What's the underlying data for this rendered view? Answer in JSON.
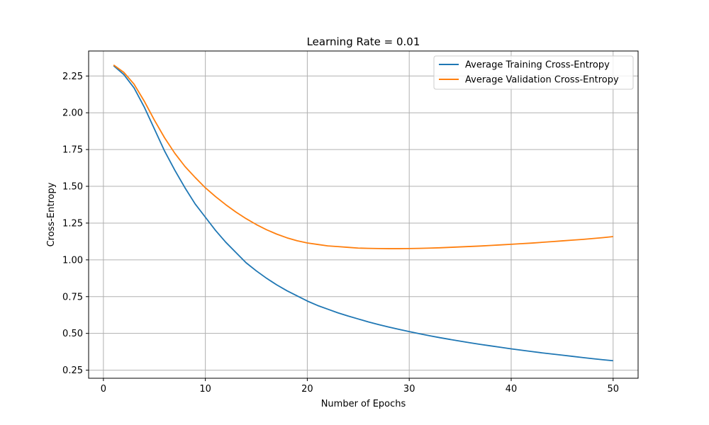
{
  "chart_data": {
    "type": "line",
    "title": "Learning Rate = 0.01",
    "xlabel": "Number of Epochs",
    "ylabel": "Cross-Entropy",
    "xlim": [
      -1.45,
      52.45
    ],
    "ylim": [
      0.195,
      2.42
    ],
    "xticks": [
      0,
      10,
      20,
      30,
      40,
      50
    ],
    "yticks": [
      0.25,
      0.5,
      0.75,
      1.0,
      1.25,
      1.5,
      1.75,
      2.0,
      2.25
    ],
    "grid": true,
    "legend_position": "top-right",
    "x": [
      1,
      2,
      3,
      4,
      5,
      6,
      7,
      8,
      9,
      10,
      11,
      12,
      13,
      14,
      15,
      16,
      17,
      18,
      19,
      20,
      21,
      22,
      23,
      24,
      25,
      26,
      27,
      28,
      29,
      30,
      31,
      32,
      33,
      34,
      35,
      36,
      37,
      38,
      39,
      40,
      41,
      42,
      43,
      44,
      45,
      46,
      47,
      48,
      49,
      50
    ],
    "series": [
      {
        "name": "Average Training Cross-Entropy",
        "color": "#1f77b4",
        "values": [
          2.32,
          2.26,
          2.17,
          2.04,
          1.89,
          1.74,
          1.61,
          1.49,
          1.38,
          1.29,
          1.2,
          1.12,
          1.05,
          0.98,
          0.925,
          0.875,
          0.83,
          0.79,
          0.755,
          0.72,
          0.69,
          0.665,
          0.64,
          0.618,
          0.598,
          0.578,
          0.56,
          0.543,
          0.527,
          0.512,
          0.498,
          0.484,
          0.471,
          0.459,
          0.447,
          0.436,
          0.425,
          0.415,
          0.405,
          0.395,
          0.386,
          0.377,
          0.368,
          0.36,
          0.352,
          0.344,
          0.336,
          0.328,
          0.321,
          0.314
        ]
      },
      {
        "name": "Average Validation Cross-Entropy",
        "color": "#ff7f0e",
        "values": [
          2.325,
          2.275,
          2.195,
          2.08,
          1.95,
          1.83,
          1.725,
          1.635,
          1.56,
          1.49,
          1.43,
          1.375,
          1.325,
          1.28,
          1.24,
          1.205,
          1.175,
          1.15,
          1.13,
          1.115,
          1.105,
          1.095,
          1.09,
          1.085,
          1.08,
          1.078,
          1.077,
          1.076,
          1.076,
          1.077,
          1.078,
          1.08,
          1.082,
          1.085,
          1.088,
          1.091,
          1.094,
          1.098,
          1.102,
          1.106,
          1.11,
          1.114,
          1.119,
          1.124,
          1.129,
          1.134,
          1.139,
          1.145,
          1.151,
          1.158
        ]
      }
    ]
  }
}
